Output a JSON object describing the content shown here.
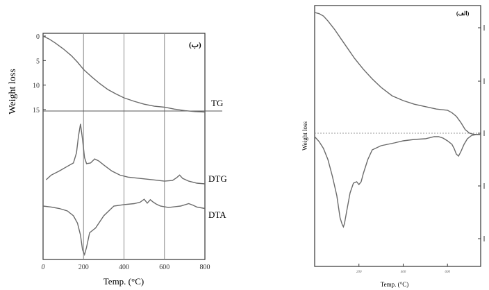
{
  "chart_data": [
    {
      "type": "line",
      "panel_label": "(ب)",
      "xlabel": "Temp. (°C)",
      "ylabel": "Weight loss",
      "x_ticks": [
        0,
        200,
        400,
        600,
        800
      ],
      "y_ticks": [
        0,
        5,
        10,
        15
      ],
      "xlim": [
        0,
        800
      ],
      "ylim_tg": [
        0,
        15
      ],
      "grid": "vertical",
      "series": [
        {
          "name": "TG",
          "x": [
            0,
            30,
            60,
            100,
            140,
            170,
            200,
            240,
            280,
            320,
            360,
            400,
            450,
            500,
            550,
            600,
            650,
            700,
            750,
            800
          ],
          "y": [
            0,
            0.6,
            1.4,
            2.6,
            4.0,
            5.3,
            6.8,
            8.3,
            9.7,
            10.9,
            11.8,
            12.6,
            13.3,
            13.9,
            14.3,
            14.5,
            14.9,
            15.2,
            15.4,
            15.5
          ]
        },
        {
          "name": "DTG",
          "x": [
            15,
            40,
            80,
            120,
            150,
            165,
            175,
            185,
            195,
            205,
            215,
            235,
            255,
            275,
            300,
            340,
            380,
            420,
            480,
            540,
            600,
            640,
            660,
            675,
            690,
            720,
            760,
            800
          ],
          "y": [
            0.05,
            0.12,
            0.18,
            0.25,
            0.3,
            0.45,
            0.7,
            0.88,
            0.65,
            0.38,
            0.29,
            0.3,
            0.36,
            0.33,
            0.27,
            0.18,
            0.12,
            0.09,
            0.07,
            0.05,
            0.03,
            0.04,
            0.08,
            0.12,
            0.07,
            0.03,
            0.0,
            -0.01
          ]
        },
        {
          "name": "DTA",
          "x": [
            0,
            40,
            80,
            120,
            150,
            170,
            185,
            195,
            205,
            215,
            230,
            260,
            300,
            350,
            400,
            450,
            480,
            500,
            515,
            530,
            545,
            560,
            580,
            620,
            680,
            720,
            740,
            760,
            800
          ],
          "y": [
            0,
            -0.02,
            -0.05,
            -0.1,
            -0.2,
            -0.35,
            -0.6,
            -0.9,
            -1.0,
            -0.85,
            -0.55,
            -0.45,
            -0.2,
            0.0,
            0.03,
            0.05,
            0.08,
            0.14,
            0.06,
            0.13,
            0.08,
            0.04,
            0.0,
            -0.03,
            0.0,
            0.05,
            0.02,
            -0.02,
            -0.05
          ]
        }
      ]
    },
    {
      "type": "line",
      "panel_label": "(الف)",
      "xlabel": "Temp. (°C)",
      "ylabel": "Weight loss",
      "x_ticks": [
        200,
        400,
        600
      ],
      "xlim": [
        0,
        750
      ],
      "grid": "none",
      "series": [
        {
          "name": "",
          "x": [
            0,
            20,
            40,
            60,
            90,
            120,
            150,
            180,
            220,
            260,
            300,
            350,
            400,
            450,
            500,
            550,
            600,
            620,
            640,
            660,
            680,
            700,
            720,
            750
          ],
          "y": [
            100,
            99,
            97,
            93,
            86,
            78,
            70,
            62,
            53,
            45,
            38,
            31,
            27,
            24,
            22,
            20,
            19,
            17,
            14,
            9,
            3,
            0,
            -1,
            -1
          ]
        },
        {
          "name": "",
          "x": [
            0,
            20,
            40,
            60,
            80,
            100,
            115,
            125,
            130,
            135,
            145,
            160,
            175,
            190,
            200,
            210,
            220,
            240,
            260,
            300,
            360,
            400,
            450,
            500,
            540,
            560,
            580,
            600,
            620,
            630,
            640,
            650,
            660,
            675,
            690,
            710,
            730,
            750
          ],
          "y": [
            -3,
            -10,
            -20,
            -36,
            -60,
            -88,
            -120,
            -130,
            -133,
            -128,
            -110,
            -84,
            -70,
            -68,
            -72,
            -68,
            -56,
            -36,
            -22,
            -16,
            -12,
            -9,
            -7,
            -6,
            -3,
            -3,
            -5,
            -9,
            -14,
            -20,
            -28,
            -31,
            -25,
            -14,
            -6,
            -1,
            0,
            0
          ]
        }
      ]
    }
  ],
  "labels": {
    "left_panel": "(ب)",
    "right_panel": "(الف)",
    "tg": "TG",
    "dtg": "DTG",
    "dta": "DTA",
    "ylabel": "Weight loss",
    "xlabel": "Temp. (°C)"
  },
  "colors": {
    "curve": "#6a6a6a",
    "axis": "#333333",
    "grid": "#8a8a8a",
    "dashed": "#9a9a9a"
  }
}
